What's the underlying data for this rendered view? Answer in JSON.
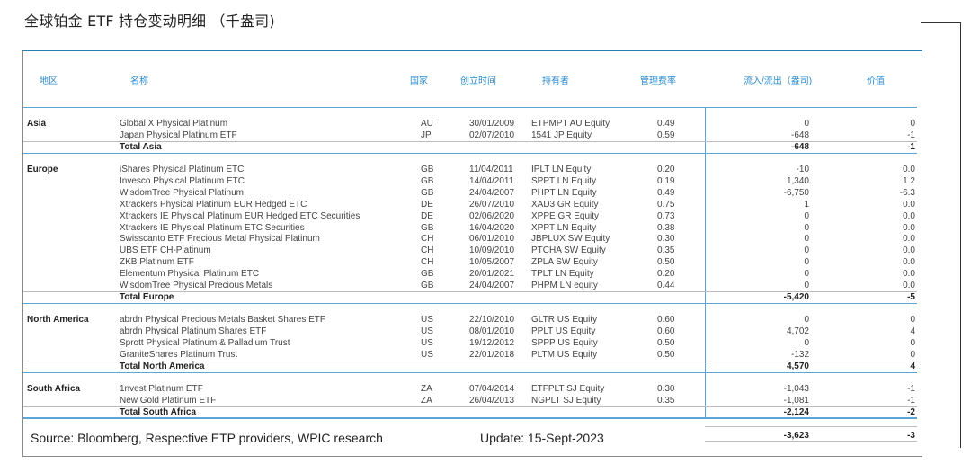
{
  "title": "全球铂金 ETF 持仓变动明细 （千盎司)",
  "headers": {
    "region": "地区",
    "name": "名称",
    "country": "国家",
    "date": "创立时间",
    "holder": "持有者",
    "fee": "管理费率",
    "flow": "流入/流出（盎司)",
    "value": "价值"
  },
  "groups": [
    {
      "region": "Asia",
      "rows": [
        {
          "name": "Global X Physical Platinum",
          "country": "AU",
          "date": "30/01/2009",
          "holder": "ETPMPT AU Equity",
          "fee": "0.49",
          "flow": "0",
          "value": "0"
        },
        {
          "name": "Japan Physical Platinum ETF",
          "country": "JP",
          "date": "02/07/2010",
          "holder": "1541 JP Equity",
          "fee": "0.59",
          "flow": "-648",
          "value": "-1"
        }
      ],
      "total": {
        "label": "Total Asia",
        "flow": "-648",
        "value": "-1"
      }
    },
    {
      "region": "Europe",
      "rows": [
        {
          "name": "iShares Physical Platinum ETC",
          "country": "GB",
          "date": "11/04/2011",
          "holder": "IPLT LN Equity",
          "fee": "0.20",
          "flow": "-10",
          "value": "0.0"
        },
        {
          "name": "Invesco Physical Platinum ETC",
          "country": "GB",
          "date": "14/04/2011",
          "holder": "SPPT LN Equity",
          "fee": "0.19",
          "flow": "1,340",
          "value": "1.2"
        },
        {
          "name": "WisdomTree Physical Platinum",
          "country": "GB",
          "date": "24/04/2007",
          "holder": "PHPT LN Equity",
          "fee": "0.49",
          "flow": "-6,750",
          "value": "-6.3"
        },
        {
          "name": "Xtrackers Physical Platinum EUR Hedged ETC",
          "country": "DE",
          "date": "26/07/2010",
          "holder": "XAD3 GR Equity",
          "fee": "0.75",
          "flow": "1",
          "value": "0.0"
        },
        {
          "name": "Xtrackers IE Physical Platinum EUR Hedged ETC Securities",
          "country": "DE",
          "date": "02/06/2020",
          "holder": "XPPE GR Equity",
          "fee": "0.73",
          "flow": "0",
          "value": "0.0"
        },
        {
          "name": "Xtrackers IE Physical Platinum ETC Securities",
          "country": "GB",
          "date": "16/04/2020",
          "holder": "XPPT LN Equity",
          "fee": "0.38",
          "flow": "0",
          "value": "0.0"
        },
        {
          "name": "Swisscanto ETF Precious Metal Physical Platinum",
          "country": "CH",
          "date": "06/01/2010",
          "holder": "JBPLUX SW Equity",
          "fee": "0.30",
          "flow": "0",
          "value": "0.0"
        },
        {
          "name": "UBS ETF CH-Platinum",
          "country": "CH",
          "date": "10/09/2010",
          "holder": "PTCHA SW Equity",
          "fee": "0.35",
          "flow": "0",
          "value": "0.0"
        },
        {
          "name": "ZKB Platinum ETF",
          "country": "CH",
          "date": "10/05/2007",
          "holder": "ZPLA SW Equity",
          "fee": "0.50",
          "flow": "0",
          "value": "0.0"
        },
        {
          "name": "Elementum Physical Platinum ETC",
          "country": "GB",
          "date": "20/01/2021",
          "holder": "TPLT LN Equity",
          "fee": "0.20",
          "flow": "0",
          "value": "0.0"
        },
        {
          "name": "WisdomTree Physical Precious Metals",
          "country": "GB",
          "date": "24/04/2007",
          "holder": "PHPM LN equity",
          "fee": "0.44",
          "flow": "0",
          "value": "0.0"
        }
      ],
      "total": {
        "label": "Total Europe",
        "flow": "-5,420",
        "value": "-5"
      }
    },
    {
      "region": "North America",
      "rows": [
        {
          "name": "abrdn Physical Precious Metals Basket Shares ETF",
          "country": "US",
          "date": "22/10/2010",
          "holder": "GLTR US Equity",
          "fee": "0.60",
          "flow": "0",
          "value": "0"
        },
        {
          "name": "abrdn Physical Platinum Shares ETF",
          "country": "US",
          "date": "08/01/2010",
          "holder": "PPLT US Equity",
          "fee": "0.60",
          "flow": "4,702",
          "value": "4"
        },
        {
          "name": "Sprott Physical Platinum & Palladium Trust",
          "country": "US",
          "date": "19/12/2012",
          "holder": "SPPP US Equity",
          "fee": "0.50",
          "flow": "0",
          "value": "0"
        },
        {
          "name": "GraniteShares Platinum Trust",
          "country": "US",
          "date": "22/01/2018",
          "holder": "PLTM US Equity",
          "fee": "0.50",
          "flow": "-132",
          "value": "0"
        }
      ],
      "total": {
        "label": "Total North America",
        "flow": "4,570",
        "value": "4"
      }
    },
    {
      "region": "South Africa",
      "rows": [
        {
          "name": "1nvest Platinum ETF",
          "country": "ZA",
          "date": "07/04/2014",
          "holder": "ETFPLT SJ Equity",
          "fee": "0.30",
          "flow": "-1,043",
          "value": "-1"
        },
        {
          "name": "New Gold Platinum ETF",
          "country": "ZA",
          "date": "26/04/2013",
          "holder": "NGPLT SJ Equity",
          "fee": "0.35",
          "flow": "-1,081",
          "value": "-1"
        }
      ],
      "total": {
        "label": "Total South Africa",
        "flow": "-2,124",
        "value": "-2"
      }
    }
  ],
  "footer": {
    "source": "Source: Bloomberg,  Respective ETP providers, WPIC research",
    "update": "Update: 15-Sept-2023"
  },
  "grand_total": {
    "flow": "-3,623",
    "value": "-3"
  }
}
